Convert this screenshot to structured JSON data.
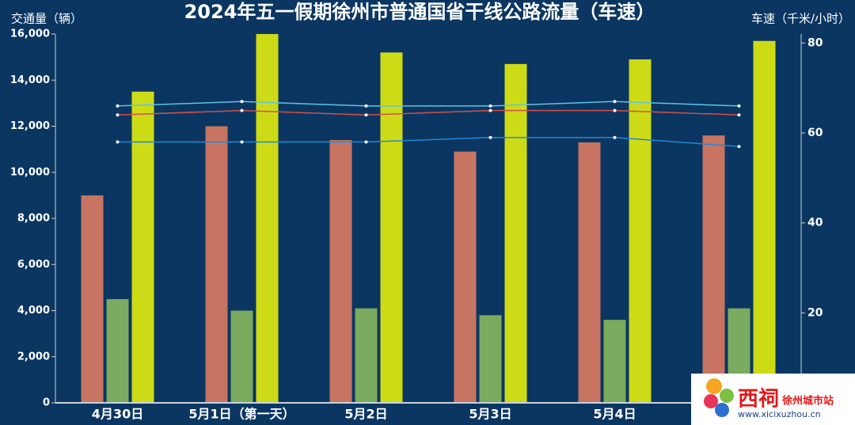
{
  "chart_data": {
    "type": "bar",
    "title": "2024年五一假期徐州市普通国省干线公路流量（车速）",
    "y_label": "交通量（辆）",
    "y2_label": "车速（千米/小时）",
    "categories": [
      "4月30日",
      "5月1日（第一天）",
      "5月2日",
      "5月3日",
      "5月4日",
      null
    ],
    "series": [
      {
        "type": "bar",
        "color": "#c87462",
        "values": [
          9000,
          12000,
          11400,
          10900,
          11300,
          11600
        ]
      },
      {
        "type": "bar",
        "color": "#7aab5e",
        "values": [
          4500,
          4000,
          4100,
          3800,
          3600,
          4100
        ]
      },
      {
        "type": "bar",
        "color": "#cddb16",
        "values": [
          13500,
          16000,
          15200,
          14700,
          14900,
          15700
        ]
      },
      {
        "type": "line",
        "axis": "y2",
        "color": "#5ec3e6",
        "values": [
          66,
          67,
          66,
          66,
          67,
          66
        ]
      },
      {
        "type": "line",
        "axis": "y2",
        "color": "#d0504a",
        "values": [
          64,
          65,
          64,
          65,
          65,
          64
        ]
      },
      {
        "type": "line",
        "axis": "y2",
        "color": "#1e8ad6",
        "values": [
          58,
          58,
          58,
          59,
          59,
          57
        ]
      }
    ],
    "ylim": [
      0,
      16000
    ],
    "yticks": [
      0,
      {
        "value": 2000,
        "label": "2,000"
      },
      {
        "value": 4000,
        "label": "4,000"
      },
      {
        "value": 6000,
        "label": "6,000"
      },
      {
        "value": 8000,
        "label": "8,000"
      },
      {
        "value": 10000,
        "label": "10,000"
      },
      {
        "value": 12000,
        "label": "12,000"
      },
      {
        "value": 14000,
        "label": "14,000"
      },
      {
        "value": 16000,
        "label": "16,000"
      }
    ],
    "y2lim": [
      0,
      82
    ],
    "y2ticks": [
      20,
      40,
      60,
      80
    ],
    "watermark": {
      "brand": "西祠",
      "site": "徐州城市站",
      "url": "www.xicixuzhou.cn"
    }
  }
}
